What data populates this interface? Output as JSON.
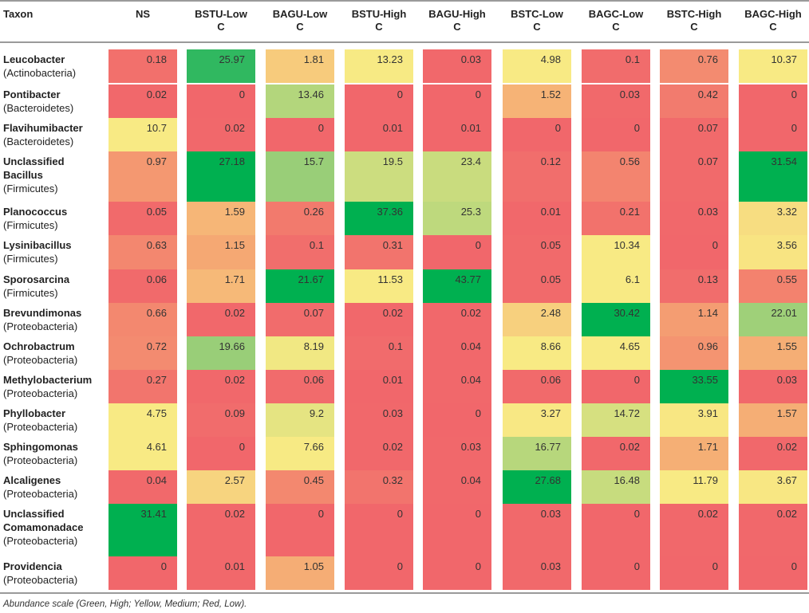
{
  "headers": [
    "Taxon",
    "NS",
    "BSTU-Low C",
    "BAGU-Low C",
    "BSTU-High C",
    "BAGU-High C",
    "BSTC-Low C",
    "BAGC-Low C",
    "BSTC-High C",
    "BAGC-High C"
  ],
  "rows": [
    {
      "name": "Leucobacter",
      "phylum": "(Actinobacteria)",
      "values": [
        "0.18",
        "25.97",
        "1.81",
        "13.23",
        "0.03",
        "4.98",
        "0.1",
        "0.76",
        "10.37"
      ]
    },
    {
      "name": "Pontibacter",
      "phylum": "(Bacteroidetes)",
      "values": [
        "0.02",
        "0",
        "13.46",
        "0",
        "0",
        "1.52",
        "0.03",
        "0.42",
        "0"
      ]
    },
    {
      "name": "Flavihumibacter",
      "phylum": "(Bacteroidetes)",
      "values": [
        "10.7",
        "0.02",
        "0",
        "0.01",
        "0.01",
        "0",
        "0",
        "0.07",
        "0"
      ]
    },
    {
      "name": "Unclassified Bacillus",
      "phylum": "(Firmicutes)",
      "values": [
        "0.97",
        "27.18",
        "15.7",
        "19.5",
        "23.4",
        "0.12",
        "0.56",
        "0.07",
        "31.54"
      ]
    },
    {
      "name": "Planococcus",
      "phylum": "(Firmicutes)",
      "values": [
        "0.05",
        "1.59",
        "0.26",
        "37.36",
        "25.3",
        "0.01",
        "0.21",
        "0.03",
        "3.32"
      ]
    },
    {
      "name": "Lysinibacillus",
      "phylum": "(Firmicutes)",
      "values": [
        "0.63",
        "1.15",
        "0.1",
        "0.31",
        "0",
        "0.05",
        "10.34",
        "0",
        "3.56"
      ]
    },
    {
      "name": "Sporosarcina",
      "phylum": "(Firmicutes)",
      "values": [
        "0.06",
        "1.71",
        "21.67",
        "11.53",
        "43.77",
        "0.05",
        "6.1",
        "0.13",
        "0.55"
      ]
    },
    {
      "name": "Brevundimonas",
      "phylum": "(Proteobacteria)",
      "values": [
        "0.66",
        "0.02",
        "0.07",
        "0.02",
        "0.02",
        "2.48",
        "30.42",
        "1.14",
        "22.01"
      ]
    },
    {
      "name": "Ochrobactrum",
      "phylum": "(Proteobacteria)",
      "values": [
        "0.72",
        "19.66",
        "8.19",
        "0.1",
        "0.04",
        "8.66",
        "4.65",
        "0.96",
        "1.55"
      ]
    },
    {
      "name": "Methylobacterium",
      "phylum": "(Proteobacteria)",
      "values": [
        "0.27",
        "0.02",
        "0.06",
        "0.01",
        "0.04",
        "0.06",
        "0",
        "33.55",
        "0.03"
      ]
    },
    {
      "name": "Phyllobacter",
      "phylum": "(Proteobacteria)",
      "values": [
        "4.75",
        "0.09",
        "9.2",
        "0.03",
        "0",
        "3.27",
        "14.72",
        "3.91",
        "1.57"
      ]
    },
    {
      "name": "Sphingomonas",
      "phylum": "(Proteobacteria)",
      "values": [
        "4.61",
        "0",
        "7.66",
        "0.02",
        "0.03",
        "16.77",
        "0.02",
        "1.71",
        "0.02"
      ]
    },
    {
      "name": "Alcaligenes",
      "phylum": "(Proteobacteria)",
      "values": [
        "0.04",
        "2.57",
        "0.45",
        "0.32",
        "0.04",
        "27.68",
        "16.48",
        "11.79",
        "3.67"
      ]
    },
    {
      "name": "Unclassified Comamonadace",
      "phylum": "(Proteobacteria)",
      "values": [
        "31.41",
        "0.02",
        "0",
        "0",
        "0",
        "0.03",
        "0",
        "0.02",
        "0.02"
      ]
    },
    {
      "name": "Providencia",
      "phylum": "(Proteobacteria)",
      "values": [
        "0",
        "0.01",
        "1.05",
        "0",
        "0",
        "0.03",
        "0",
        "0",
        "0"
      ]
    }
  ],
  "footnote": "Abundance scale (Green, High; Yellow, Medium; Red, Low).",
  "colors": {
    "rule": "#9a9a9a",
    "red": "#f1676b",
    "orange": "#f5a673",
    "yellow": "#f8ea84",
    "green": "#6cc173",
    "dark_green": "#00b050"
  }
}
